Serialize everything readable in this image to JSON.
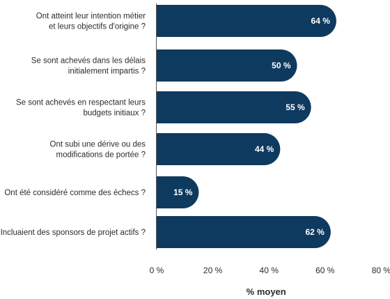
{
  "chart_data": {
    "type": "bar",
    "orientation": "horizontal",
    "categories": [
      [
        "Ont atteint leur intention métier",
        "et leurs objectifs d'origine ?"
      ],
      [
        "Se sont achevés dans les délais",
        "initialement impartis ?"
      ],
      [
        "Se sont achevés en respectant leurs",
        "budgets initiaux ?"
      ],
      [
        "Ont subi une dérive ou des",
        "modifications de portée ?"
      ],
      [
        "Ont été considéré comme des échecs ?"
      ],
      [
        "Incluaient des sponsors de projet actifs ?"
      ]
    ],
    "values": [
      64,
      50,
      55,
      44,
      15,
      62
    ],
    "data_labels": [
      "64 %",
      "50 %",
      "55 %",
      "44 %",
      "15 %",
      "62 %"
    ],
    "xlim": [
      0,
      80
    ],
    "xticks": [
      0,
      20,
      40,
      60,
      80
    ],
    "xtick_labels": [
      "0 %",
      "20 %",
      "40 %",
      "60 %",
      "80 %"
    ],
    "xlabel": "% moyen",
    "title": "",
    "grid": false,
    "bar_color": "#0f3a5f",
    "label_color": "#ffffff"
  }
}
